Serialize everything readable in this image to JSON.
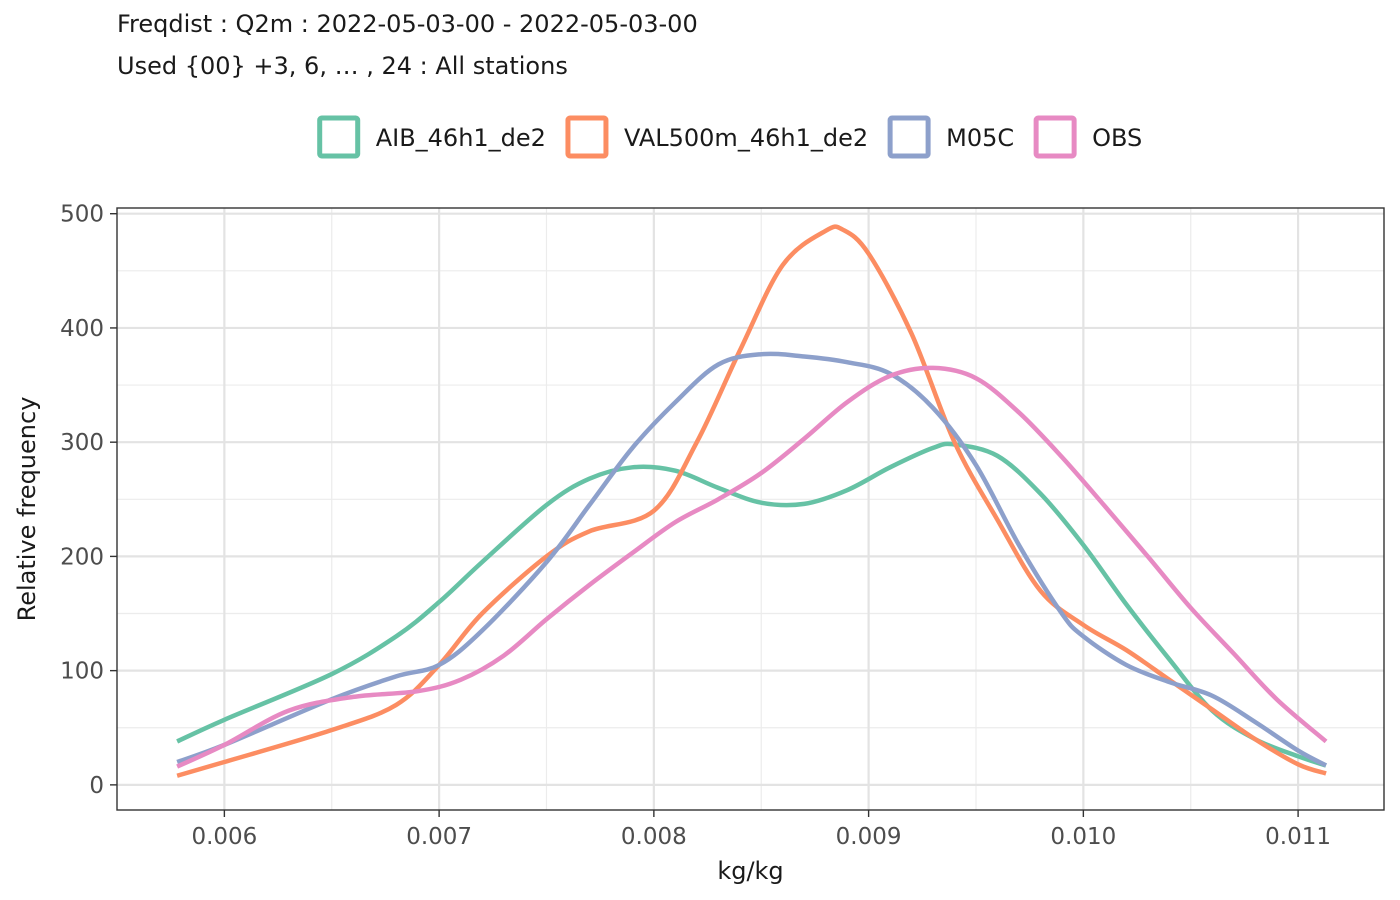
{
  "chart_data": {
    "type": "line",
    "title": "Freqdist : Q2m : 2022-05-03-00 - 2022-05-03-00",
    "subtitle": "Used {00} +3, 6, … , 24 : All stations",
    "xlabel": "kg/kg",
    "ylabel": "Relative frequency",
    "xlim": [
      0.0055,
      0.0114
    ],
    "ylim": [
      -22,
      505
    ],
    "xticks": [
      0.006,
      0.007,
      0.008,
      0.009,
      0.01,
      0.011
    ],
    "xtick_labels": [
      "0.006",
      "0.007",
      "0.008",
      "0.009",
      "0.010",
      "0.011"
    ],
    "yticks": [
      0,
      100,
      200,
      300,
      400,
      500
    ],
    "ytick_labels": [
      "0",
      "100",
      "200",
      "300",
      "400",
      "500"
    ],
    "grid": true,
    "legend_position": "top",
    "series": [
      {
        "name": "AIB_46h1_de2",
        "color": "#66c2a5",
        "x": [
          0.00578,
          0.006,
          0.0065,
          0.0068,
          0.007,
          0.0072,
          0.0075,
          0.0077,
          0.0079,
          0.0081,
          0.0083,
          0.0085,
          0.0087,
          0.0089,
          0.0091,
          0.0093,
          0.0094,
          0.0096,
          0.0098,
          0.01,
          0.0102,
          0.0104,
          0.0106,
          0.0108,
          0.011,
          0.01113
        ],
        "y": [
          38,
          57,
          97,
          130,
          160,
          195,
          245,
          268,
          278,
          275,
          260,
          247,
          246,
          258,
          278,
          295,
          298,
          288,
          255,
          210,
          158,
          110,
          65,
          40,
          25,
          17
        ]
      },
      {
        "name": "VAL500m_46h1_de2",
        "color": "#fc8d62",
        "x": [
          0.00578,
          0.006,
          0.0065,
          0.0068,
          0.007,
          0.0072,
          0.0075,
          0.0077,
          0.008,
          0.0082,
          0.0084,
          0.0086,
          0.0088,
          0.00888,
          0.009,
          0.0092,
          0.0094,
          0.0096,
          0.0098,
          0.01,
          0.0102,
          0.0104,
          0.0106,
          0.0108,
          0.011,
          0.01113
        ],
        "y": [
          8,
          20,
          48,
          70,
          105,
          150,
          200,
          222,
          240,
          300,
          380,
          455,
          485,
          486,
          465,
          395,
          300,
          232,
          170,
          140,
          118,
          92,
          66,
          40,
          18,
          10
        ]
      },
      {
        "name": "M05C",
        "color": "#8da0cb",
        "x": [
          0.00578,
          0.006,
          0.0065,
          0.0068,
          0.007,
          0.0072,
          0.0075,
          0.0077,
          0.0079,
          0.0081,
          0.0083,
          0.0085,
          0.0087,
          0.0089,
          0.0091,
          0.0093,
          0.0095,
          0.0097,
          0.0099,
          0.01,
          0.0102,
          0.0104,
          0.0106,
          0.0108,
          0.011,
          0.01113
        ],
        "y": [
          20,
          35,
          75,
          95,
          105,
          135,
          195,
          245,
          295,
          335,
          368,
          377,
          375,
          370,
          360,
          330,
          280,
          210,
          150,
          130,
          105,
          90,
          78,
          55,
          30,
          17
        ]
      },
      {
        "name": "OBS",
        "color": "#e78ac3",
        "x": [
          0.00578,
          0.006,
          0.0063,
          0.0066,
          0.0069,
          0.0071,
          0.0073,
          0.0075,
          0.0077,
          0.0079,
          0.0081,
          0.0083,
          0.0085,
          0.0087,
          0.0089,
          0.0091,
          0.0093,
          0.0095,
          0.0097,
          0.0099,
          0.0101,
          0.0103,
          0.0105,
          0.0107,
          0.0109,
          0.01113
        ],
        "y": [
          16,
          35,
          65,
          77,
          82,
          92,
          113,
          145,
          175,
          203,
          230,
          250,
          273,
          303,
          335,
          358,
          365,
          356,
          326,
          287,
          244,
          200,
          155,
          115,
          75,
          38
        ]
      }
    ]
  }
}
